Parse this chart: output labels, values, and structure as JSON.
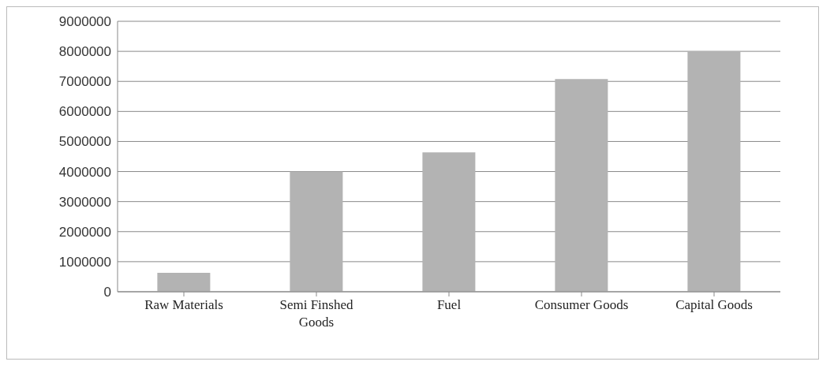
{
  "chart_data": {
    "type": "bar",
    "categories": [
      "Raw Materials",
      "Semi Finshed Goods",
      "Fuel",
      "Consumer Goods",
      "Capital Goods"
    ],
    "values": [
      630000,
      4000000,
      4640000,
      7080000,
      8000000
    ],
    "color": "#b3b3b3",
    "ylim": [
      0,
      9000000
    ],
    "yticks": [
      0,
      1000000,
      2000000,
      3000000,
      4000000,
      5000000,
      6000000,
      7000000,
      8000000,
      9000000
    ],
    "grid": "y"
  }
}
